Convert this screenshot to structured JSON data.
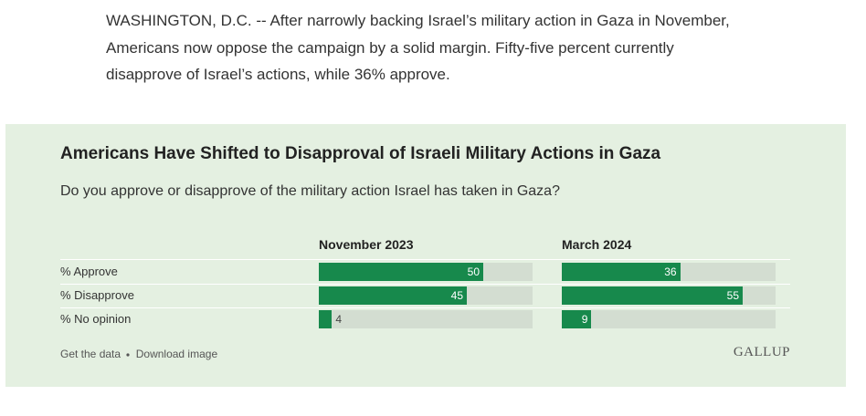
{
  "article_text": "WASHINGTON, D.C. -- After narrowly backing Israel’s military action in Gaza in November, Americans now oppose the campaign by a solid margin. Fifty-five percent currently disapprove of Israel’s actions, while 36% approve.",
  "chart_data": {
    "type": "bar",
    "orientation": "horizontal",
    "title": "Americans Have Shifted to Disapproval of Israeli Military Actions in Gaza",
    "subtitle": "Do you approve or disapprove of the military action Israel has taken in Gaza?",
    "categories": [
      "% Approve",
      "% Disapprove",
      "% No opinion"
    ],
    "series": [
      {
        "name": "November 2023",
        "color": "#17894c",
        "values": [
          50,
          45,
          4
        ]
      },
      {
        "name": "March 2024",
        "color": "#17894c",
        "values": [
          36,
          55,
          9
        ]
      }
    ],
    "xlim": [
      0,
      65
    ],
    "footer_links": [
      "Get the data",
      "Download image"
    ],
    "brand": "GALLUP"
  }
}
